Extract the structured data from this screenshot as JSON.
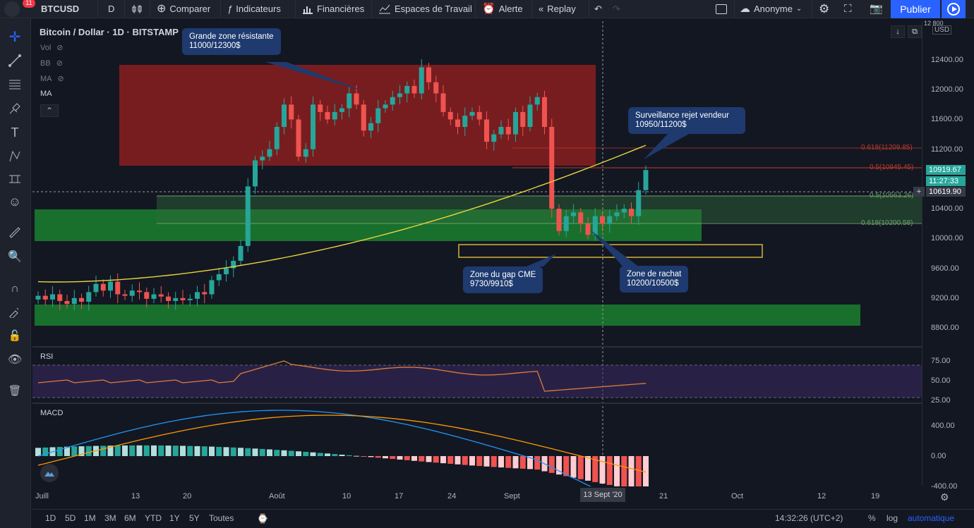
{
  "topbar": {
    "symbol": "BTCUSD",
    "notification_count": "11",
    "interval": "D",
    "compare": "Comparer",
    "indicators": "Indicateurs",
    "financials": "Financières",
    "workspaces": "Espaces de Travail",
    "alert": "Alerte",
    "replay": "Replay",
    "account": "Anonyme",
    "publish": "Publier"
  },
  "legend": {
    "title": "Bitcoin / Dollar · 1D · BITSTAMP",
    "vol": "Vol",
    "bb": "BB",
    "ma1": "MA",
    "ma2": "MA"
  },
  "price_axis": {
    "currency": "USD",
    "ticks": [
      "12 800",
      "12400.00",
      "12000.00",
      "11600.00",
      "11200.00",
      "10400.00",
      "10000.00",
      "9600.00",
      "9200.00",
      "8800.00"
    ],
    "last_price": "10919.67",
    "countdown": "11:27:33",
    "crosshair_price": "10619.90"
  },
  "rsi_axis": [
    "75.00",
    "50.00",
    "25.00"
  ],
  "macd_axis": [
    "400.00",
    "0.00",
    "-400.00"
  ],
  "callouts": {
    "resistance_title": "Grande zone résistante",
    "resistance_range": "11000/12300$",
    "watch_title": "Surveillance rejet vendeur",
    "watch_range": "10950/11200$",
    "gap_title": "Zone du gap CME",
    "gap_range": "9730/9910$",
    "buy_title": "Zone de rachat",
    "buy_range": "10200/10500$"
  },
  "fib_labels": {
    "f1": "0.618(11209.85)",
    "f2": "0.5(10945.45)",
    "f3": "0.5(10563.26)",
    "f4": "0.618(10200.58)"
  },
  "panes": {
    "rsi": "RSI",
    "macd": "MACD"
  },
  "time_axis": [
    "Juill",
    "13",
    "20",
    "Août",
    "10",
    "17",
    "24",
    "Sept",
    "21",
    "Oct",
    "12",
    "19"
  ],
  "crosshair_date": "13 Sept '20",
  "bottombar": {
    "timeframes": [
      "1D",
      "5D",
      "1M",
      "3M",
      "6M",
      "YTD",
      "1Y",
      "5Y",
      "Toutes"
    ],
    "clock": "14:32:26 (UTC+2)",
    "percent": "%",
    "log": "log",
    "auto": "automatique"
  },
  "colors": {
    "up": "#26a69a",
    "down": "#ef5350",
    "resistance_zone": "#8b1e1e",
    "support_zone": "#1b7a2e",
    "ma_line": "#e8d53e",
    "callout_bg": "#1e3a6e",
    "accent": "#2962ff"
  }
}
